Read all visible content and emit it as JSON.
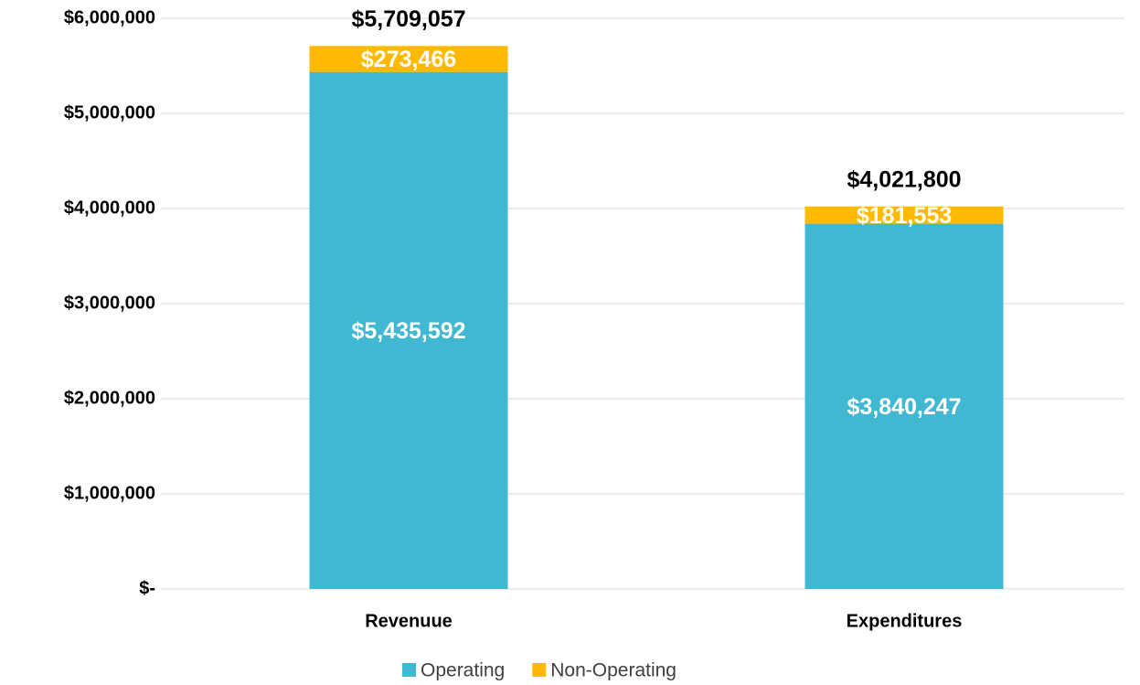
{
  "chart_data": {
    "type": "stacked_bar",
    "categories": [
      "Revenuue",
      "Expenditures"
    ],
    "series": [
      {
        "name": "Operating",
        "color": "#40b8d2",
        "values": [
          5435592,
          3840247
        ],
        "value_labels": [
          "$5,435,592",
          "$3,840,247"
        ]
      },
      {
        "name": "Non-Operating",
        "color": "#ffb900",
        "values": [
          273466,
          181553
        ],
        "value_labels": [
          "$273,466",
          "$181,553"
        ]
      }
    ],
    "totals": [
      5709057,
      4021800
    ],
    "total_labels": [
      "$5,709,057",
      "$4,021,800"
    ],
    "ylim": [
      0,
      6000000
    ],
    "yticks": [
      {
        "value": 0,
        "label": "$-"
      },
      {
        "value": 1000000,
        "label": "$1,000,000"
      },
      {
        "value": 2000000,
        "label": "$2,000,000"
      },
      {
        "value": 3000000,
        "label": "$3,000,000"
      },
      {
        "value": 4000000,
        "label": "$4,000,000"
      },
      {
        "value": 5000000,
        "label": "$5,000,000"
      },
      {
        "value": 6000000,
        "label": "$6,000,000"
      }
    ],
    "grid": true,
    "legend": "bottom"
  }
}
